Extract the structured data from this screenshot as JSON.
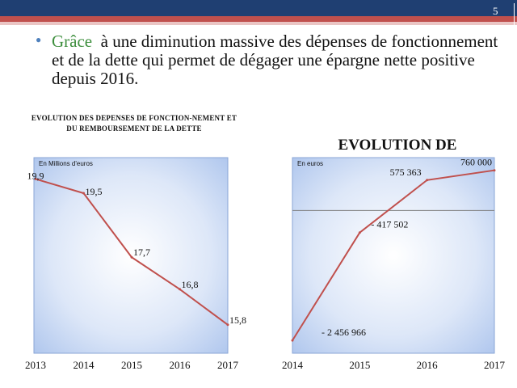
{
  "slide": {
    "number": "5",
    "bullet_highlight": "Grâce",
    "bullet_rest": "à une diminution massive des dépenses de fonctionnement et de la dette qui permet de dégager une épargne nette positive depuis 2016."
  },
  "chart_data": [
    {
      "type": "line",
      "title": "EVOLUTION DES DEPENSES DE FONCTION-NEMENT ET DU REMBOURSEMENT DE LA DETTE",
      "unit_label": "En Millions d'euros",
      "x": [
        "2013",
        "2014",
        "2015",
        "2016",
        "2017"
      ],
      "values": [
        19.9,
        19.5,
        17.7,
        16.8,
        15.8
      ],
      "data_labels": [
        "19,9",
        "19,5",
        "17,7",
        "16,8",
        "15,8"
      ],
      "ylim": [
        15.0,
        20.5
      ],
      "line_color": "#c0504d"
    },
    {
      "type": "line",
      "title": "EVOLUTION DE L'EPARGNE NETTE",
      "unit_label": "En euros",
      "x": [
        "2014",
        "2015",
        "2016",
        "2017"
      ],
      "values": [
        -2456966,
        -417502,
        575363,
        760000
      ],
      "data_labels": [
        "- 2 456 966",
        "- 417 502",
        "575 363",
        "760 000"
      ],
      "ylim": [
        -2700000,
        1000000
      ],
      "zero_line": true,
      "line_color": "#c0504d"
    }
  ]
}
